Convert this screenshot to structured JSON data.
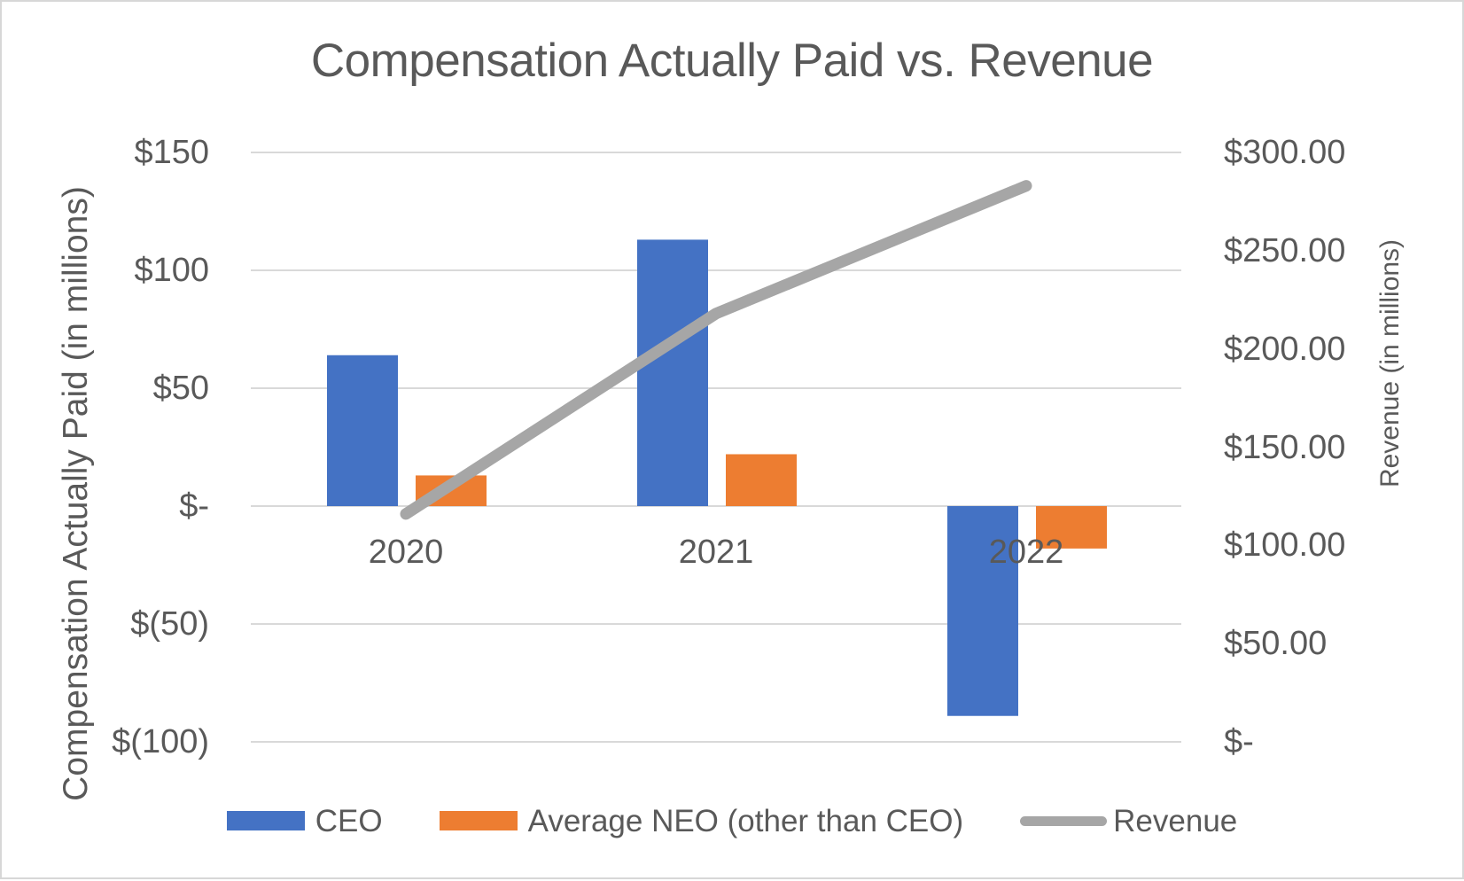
{
  "chart_data": {
    "type": "combo-bar-line",
    "title": "Compensation Actually Paid vs. Revenue",
    "categories": [
      "2020",
      "2021",
      "2022"
    ],
    "series": [
      {
        "name": "CEO",
        "chart": "bar",
        "axis": "left",
        "color": "#4472C4",
        "values": [
          64,
          113,
          -89
        ]
      },
      {
        "name": "Average NEO (other than CEO)",
        "chart": "bar",
        "axis": "left",
        "color": "#ED7D31",
        "values": [
          13,
          22,
          -18
        ]
      },
      {
        "name": "Revenue",
        "chart": "line",
        "axis": "right",
        "color": "#A6A6A6",
        "values": [
          116,
          218,
          283
        ]
      }
    ],
    "left_axis": {
      "label": "Compensation Actually Paid (in millions)",
      "range": [
        -100,
        150
      ],
      "ticks": [
        {
          "label": "$150",
          "value": 150
        },
        {
          "label": "$100",
          "value": 100
        },
        {
          "label": "$50",
          "value": 50
        },
        {
          "label": "$-",
          "value": 0
        },
        {
          "label": "$(50)",
          "value": -50
        },
        {
          "label": "$(100)",
          "value": -100
        }
      ]
    },
    "right_axis": {
      "label": "Revenue (in millions)",
      "range": [
        0,
        300
      ],
      "ticks": [
        {
          "label": "$300.00",
          "value": 300
        },
        {
          "label": "$250.00",
          "value": 250
        },
        {
          "label": "$200.00",
          "value": 200
        },
        {
          "label": "$150.00",
          "value": 150
        },
        {
          "label": "$100.00",
          "value": 100
        },
        {
          "label": "$50.00",
          "value": 50
        },
        {
          "label": "$-",
          "value": 0
        }
      ]
    },
    "grid": "horizontal",
    "legend_position": "bottom"
  },
  "legend": {
    "items": [
      {
        "label": "CEO",
        "color": "#4472C4",
        "marker": "bar"
      },
      {
        "label": "Average NEO (other than CEO)",
        "color": "#ED7D31",
        "marker": "bar"
      },
      {
        "label": "Revenue",
        "color": "#A6A6A6",
        "marker": "line"
      }
    ]
  },
  "colors": {
    "text": "#595959",
    "gridline": "#D9D9D9",
    "background": "#FFFFFF",
    "border": "#D7D7D7"
  }
}
